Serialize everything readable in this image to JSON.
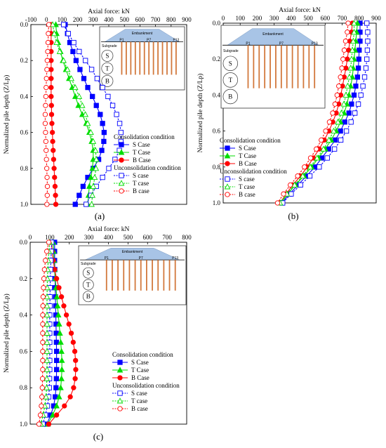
{
  "chart_data": [
    {
      "panel": "(a)",
      "type": "line",
      "xlabel": "Axial force: kN",
      "ylabel": "Normalized pile depth (Z/Lp)",
      "xlim": [
        -100,
        900
      ],
      "ylim": [
        0.0,
        1.0
      ],
      "x_ticks": [
        -100,
        0,
        100,
        200,
        300,
        400,
        500,
        600,
        700,
        800,
        900
      ],
      "y_ticks": [
        0.0,
        0.2,
        0.4,
        0.6,
        0.8,
        1.0
      ],
      "grid": false,
      "y_inverted": true,
      "x_axis_position": "top",
      "depth": [
        0.0,
        0.05,
        0.1,
        0.15,
        0.2,
        0.25,
        0.3,
        0.35,
        0.4,
        0.45,
        0.5,
        0.55,
        0.6,
        0.65,
        0.7,
        0.75,
        0.8,
        0.85,
        0.9,
        0.95,
        1.0
      ],
      "series": [
        {
          "name": "S Case",
          "group": "Consolidation condition",
          "color": "#0000ff",
          "marker": "square-filled",
          "dash": false,
          "values": [
            120,
            135,
            150,
            170,
            190,
            215,
            240,
            265,
            295,
            320,
            345,
            360,
            370,
            368,
            355,
            335,
            300,
            265,
            235,
            210,
            185
          ]
        },
        {
          "name": "T Case",
          "group": "Consolidation condition",
          "color": "#00dd00",
          "marker": "triangle-filled",
          "dash": false,
          "values": [
            60,
            65,
            75,
            90,
            105,
            125,
            145,
            165,
            185,
            205,
            230,
            255,
            275,
            290,
            300,
            300,
            295,
            285,
            275,
            270,
            265
          ]
        },
        {
          "name": "B Case",
          "group": "Consolidation condition",
          "color": "#ff0000",
          "marker": "circle-filled",
          "dash": false,
          "values": [
            30,
            30,
            30,
            30,
            30,
            30,
            30,
            30,
            30,
            32,
            33,
            35,
            38,
            40,
            43,
            46,
            49,
            52,
            55,
            58,
            60
          ]
        },
        {
          "name": "S case",
          "group": "Unconsolidation condition",
          "color": "#0000ff",
          "marker": "square-open",
          "dash": true,
          "values": [
            110,
            140,
            175,
            210,
            250,
            290,
            325,
            360,
            395,
            425,
            450,
            470,
            478,
            478,
            468,
            440,
            400,
            360,
            320,
            285,
            255
          ]
        },
        {
          "name": "T case",
          "group": "Unconsolidation condition",
          "color": "#00dd00",
          "marker": "triangle-open",
          "dash": true,
          "values": [
            40,
            50,
            65,
            85,
            110,
            135,
            160,
            185,
            210,
            230,
            250,
            265,
            285,
            300,
            315,
            320,
            318,
            310,
            300,
            295,
            290
          ]
        },
        {
          "name": "B case",
          "group": "Unconsolidation condition",
          "color": "#ff0000",
          "marker": "circle-open",
          "dash": true,
          "values": [
            15,
            12,
            10,
            8,
            5,
            3,
            0,
            -2,
            -4,
            -6,
            -8,
            -8,
            -6,
            -4,
            -2,
            0,
            2,
            4,
            6,
            5,
            3
          ]
        }
      ]
    },
    {
      "panel": "(b)",
      "type": "line",
      "xlabel": "Axial force: kN",
      "ylabel": "Normalized pile depth (Z/Lp)",
      "xlim": [
        0,
        900
      ],
      "ylim": [
        0.0,
        1.0
      ],
      "x_ticks": [
        0,
        100,
        200,
        300,
        400,
        500,
        600,
        700,
        800,
        900
      ],
      "y_ticks": [
        0.0,
        0.2,
        0.4,
        0.6,
        0.8,
        1.0
      ],
      "grid": false,
      "y_inverted": true,
      "x_axis_position": "top",
      "depth": [
        0.0,
        0.05,
        0.1,
        0.15,
        0.2,
        0.25,
        0.3,
        0.35,
        0.4,
        0.45,
        0.5,
        0.55,
        0.6,
        0.65,
        0.7,
        0.75,
        0.8,
        0.85,
        0.9,
        0.95,
        1.0
      ],
      "series": [
        {
          "name": "S Case",
          "group": "Consolidation condition",
          "color": "#0000ff",
          "marker": "square-filled",
          "dash": false,
          "values": [
            805,
            805,
            805,
            800,
            798,
            795,
            790,
            780,
            770,
            755,
            740,
            715,
            690,
            660,
            620,
            580,
            540,
            490,
            440,
            390,
            345
          ]
        },
        {
          "name": "T Case",
          "group": "Consolidation condition",
          "color": "#00dd00",
          "marker": "triangle-filled",
          "dash": false,
          "values": [
            790,
            785,
            780,
            775,
            770,
            765,
            760,
            750,
            740,
            728,
            712,
            690,
            665,
            635,
            600,
            560,
            520,
            475,
            425,
            380,
            340
          ]
        },
        {
          "name": "B Case",
          "group": "Consolidation condition",
          "color": "#ff0000",
          "marker": "circle-filled",
          "dash": false,
          "values": [
            760,
            755,
            745,
            738,
            730,
            722,
            712,
            702,
            692,
            680,
            665,
            645,
            622,
            595,
            565,
            530,
            495,
            455,
            410,
            370,
            335
          ]
        },
        {
          "name": "S case",
          "group": "Unconsolidation condition",
          "color": "#0000ff",
          "marker": "square-open",
          "dash": true,
          "values": [
            845,
            850,
            850,
            848,
            845,
            840,
            832,
            822,
            810,
            795,
            775,
            752,
            725,
            692,
            655,
            612,
            565,
            510,
            455,
            400,
            350
          ]
        },
        {
          "name": "T case",
          "group": "Unconsolidation condition",
          "color": "#00dd00",
          "marker": "triangle-open",
          "dash": true,
          "values": [
            770,
            770,
            765,
            760,
            755,
            750,
            742,
            732,
            722,
            710,
            695,
            675,
            650,
            622,
            590,
            552,
            512,
            468,
            420,
            375,
            335
          ]
        },
        {
          "name": "B case",
          "group": "Unconsolidation condition",
          "color": "#ff0000",
          "marker": "circle-open",
          "dash": true,
          "values": [
            735,
            730,
            720,
            712,
            705,
            698,
            690,
            680,
            670,
            658,
            644,
            625,
            603,
            577,
            548,
            514,
            478,
            438,
            395,
            355,
            320
          ]
        }
      ]
    },
    {
      "panel": "(c)",
      "type": "line",
      "xlabel": "Axial force: kN",
      "ylabel": "Normalized pile depth (Z/Lp)",
      "xlim": [
        0,
        800
      ],
      "ylim": [
        0.0,
        1.0
      ],
      "x_ticks": [
        0,
        100,
        200,
        300,
        400,
        500,
        600,
        700,
        800
      ],
      "y_ticks": [
        0.0,
        0.2,
        0.4,
        0.6,
        0.8,
        1.0
      ],
      "grid": false,
      "y_inverted": true,
      "x_axis_position": "top",
      "depth": [
        0.0,
        0.05,
        0.1,
        0.15,
        0.2,
        0.25,
        0.3,
        0.35,
        0.4,
        0.45,
        0.5,
        0.55,
        0.6,
        0.65,
        0.7,
        0.75,
        0.8,
        0.85,
        0.9,
        0.95,
        1.0
      ],
      "series": [
        {
          "name": "S Case",
          "group": "Consolidation condition",
          "color": "#0000ff",
          "marker": "square-filled",
          "dash": false,
          "values": [
            125,
            125,
            125,
            126,
            127,
            128,
            129,
            130,
            131,
            132,
            133,
            134,
            135,
            135,
            135,
            134,
            132,
            128,
            120,
            105,
            85
          ]
        },
        {
          "name": "T Case",
          "group": "Consolidation condition",
          "color": "#00dd00",
          "marker": "triangle-filled",
          "dash": false,
          "values": [
            118,
            120,
            122,
            125,
            128,
            132,
            136,
            140,
            144,
            148,
            152,
            156,
            160,
            162,
            162,
            160,
            156,
            148,
            135,
            115,
            90
          ]
        },
        {
          "name": "B Case",
          "group": "Consolidation condition",
          "color": "#ff0000",
          "marker": "circle-filled",
          "dash": false,
          "values": [
            110,
            112,
            118,
            125,
            135,
            147,
            160,
            172,
            185,
            198,
            210,
            220,
            228,
            232,
            233,
            230,
            222,
            205,
            175,
            135,
            95
          ]
        },
        {
          "name": "S case",
          "group": "Unconsolidation condition",
          "color": "#0000ff",
          "marker": "square-open",
          "dash": true,
          "values": [
            110,
            108,
            106,
            104,
            103,
            102,
            101,
            101,
            100,
            100,
            100,
            100,
            100,
            100,
            100,
            99,
            98,
            95,
            88,
            78,
            65
          ]
        },
        {
          "name": "T case",
          "group": "Unconsolidation condition",
          "color": "#00dd00",
          "marker": "triangle-open",
          "dash": true,
          "values": [
            100,
            96,
            92,
            90,
            88,
            87,
            86,
            86,
            86,
            86,
            86,
            86,
            86,
            86,
            86,
            85,
            84,
            81,
            75,
            66,
            55
          ]
        },
        {
          "name": "B case",
          "group": "Unconsolidation condition",
          "color": "#ff0000",
          "marker": "circle-open",
          "dash": true,
          "values": [
            95,
            85,
            78,
            73,
            70,
            68,
            66,
            65,
            64,
            64,
            64,
            64,
            64,
            64,
            64,
            63,
            62,
            60,
            57,
            52,
            45
          ]
        }
      ]
    }
  ],
  "inset": {
    "embankment_label": "Embankment",
    "subgrade_label": "Subgrade",
    "pile_labels": [
      "P1",
      "P7",
      "P13"
    ],
    "pile_count": 13,
    "cases": [
      "S",
      "T",
      "B"
    ],
    "fill_color": "#a8c4e6",
    "pile_color": "#d2783c"
  },
  "legend": {
    "cons_head": "Consolidation condition",
    "uncons_head": "Unconsolidation condition"
  }
}
